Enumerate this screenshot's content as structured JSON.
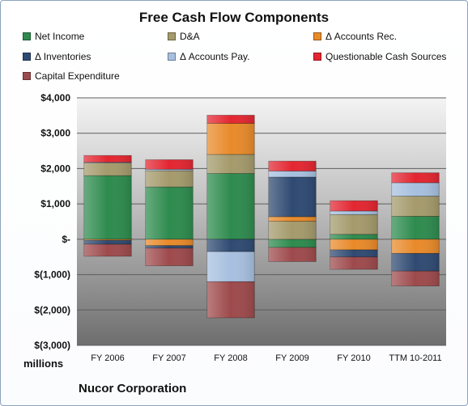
{
  "chart_data": {
    "type": "bar",
    "stacked": true,
    "title": "Free Cash Flow Components",
    "ylabel": "millions",
    "footer": "Nucor Corporation",
    "ylim": [
      -3000,
      4000
    ],
    "yticks": [
      -3000,
      -2000,
      -1000,
      0,
      1000,
      2000,
      3000,
      4000
    ],
    "ytick_labels": [
      "$(3,000)",
      "$(2,000)",
      "$(1,000)",
      "$-",
      "$1,000",
      "$2,000",
      "$3,000",
      "$4,000"
    ],
    "grid": true,
    "legend_position": "top",
    "categories": [
      "FY 2006",
      "FY 2007",
      "FY 2008",
      "FY 2009",
      "FY 2010",
      "TTM 10-2011"
    ],
    "series": [
      {
        "name": "Net Income",
        "color": "#2e8b4e",
        "values": [
          1800,
          1480,
          1860,
          -230,
          140,
          650
        ]
      },
      {
        "name": "D&A",
        "color": "#a49a6c",
        "values": [
          360,
          460,
          540,
          510,
          560,
          570
        ]
      },
      {
        "name": "Δ Accounts Rec.",
        "color": "#e88a2a",
        "values": [
          -30,
          -180,
          880,
          130,
          -300,
          -400
        ]
      },
      {
        "name": "Δ Inventories",
        "color": "#2f4a72",
        "values": [
          -110,
          -70,
          -350,
          1120,
          -200,
          -500
        ]
      },
      {
        "name": "Δ Accounts Pay.",
        "color": "#a7c0df",
        "values": [
          20,
          40,
          -850,
          170,
          100,
          380
        ]
      },
      {
        "name": "Questionable Cash Sources",
        "color": "#e32631",
        "values": [
          190,
          270,
          230,
          280,
          290,
          280
        ]
      },
      {
        "name": "Capital Expenditure",
        "color": "#9e4a4c",
        "values": [
          -340,
          -500,
          -1020,
          -400,
          -350,
          -420
        ]
      }
    ]
  }
}
